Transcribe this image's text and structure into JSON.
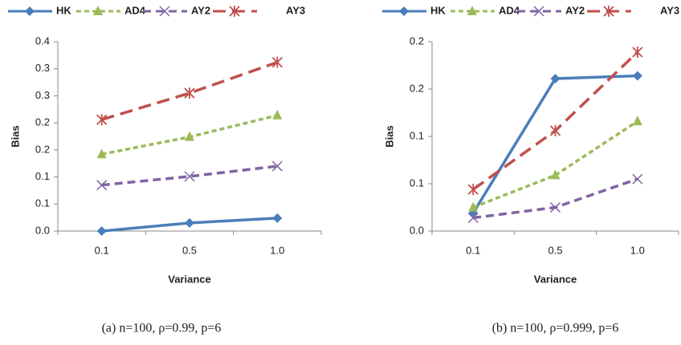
{
  "chart_data": [
    {
      "type": "line",
      "categories": [
        "0.1",
        "0.5",
        "1.0"
      ],
      "x_label": "Variance",
      "y_label": "Bias",
      "caption": "(a) n=100, ρ=0.99, p=6",
      "ylim": [
        0,
        0.35
      ],
      "yticks": [
        {
          "value": 0,
          "label": "0.0"
        },
        {
          "value": 0.05,
          "label": "0.1"
        },
        {
          "value": 0.1,
          "label": "0.1"
        },
        {
          "value": 0.15,
          "label": "0.2"
        },
        {
          "value": 0.2,
          "label": "0.2"
        },
        {
          "value": 0.25,
          "label": "0.3"
        },
        {
          "value": 0.3,
          "label": "0.3"
        },
        {
          "value": 0.35,
          "label": "0.4"
        }
      ],
      "series": [
        {
          "name": "HK",
          "color": "#4a7ebb",
          "marker": "diamond",
          "dash": "solid",
          "values": [
            0,
            0.015,
            0.024
          ]
        },
        {
          "name": "AD4",
          "color": "#9bbb59",
          "marker": "triangle",
          "dash": "short",
          "values": [
            0.142,
            0.174,
            0.214
          ]
        },
        {
          "name": "AY2",
          "color": "#8064a2",
          "marker": "x",
          "dash": "medium",
          "values": [
            0.085,
            0.101,
            0.12
          ]
        },
        {
          "name": "AY3",
          "color": "#c0504d",
          "marker": "star",
          "dash": "long",
          "values": [
            0.206,
            0.255,
            0.312
          ]
        }
      ]
    },
    {
      "type": "line",
      "categories": [
        "0.1",
        "0.5",
        "1.0"
      ],
      "x_label": "Variance",
      "y_label": "Bias",
      "caption": "(b) n=100, ρ=0.999, p=6",
      "ylim": [
        0,
        0.2
      ],
      "yticks": [
        {
          "value": 0,
          "label": "0.0"
        },
        {
          "value": 0.05,
          "label": "0.1"
        },
        {
          "value": 0.1,
          "label": "0.1"
        },
        {
          "value": 0.15,
          "label": "0.2"
        },
        {
          "value": 0.2,
          "label": "0.2"
        }
      ],
      "series": [
        {
          "name": "HK",
          "color": "#4a7ebb",
          "marker": "diamond",
          "dash": "solid",
          "values": [
            0.019,
            0.161,
            0.164
          ]
        },
        {
          "name": "AD4",
          "color": "#9bbb59",
          "marker": "triangle",
          "dash": "short",
          "values": [
            0.025,
            0.059,
            0.116
          ]
        },
        {
          "name": "AY2",
          "color": "#8064a2",
          "marker": "x",
          "dash": "medium",
          "values": [
            0.014,
            0.025,
            0.055
          ]
        },
        {
          "name": "AY3",
          "color": "#c0504d",
          "marker": "star",
          "dash": "long",
          "values": [
            0.044,
            0.106,
            0.189
          ]
        }
      ]
    }
  ]
}
